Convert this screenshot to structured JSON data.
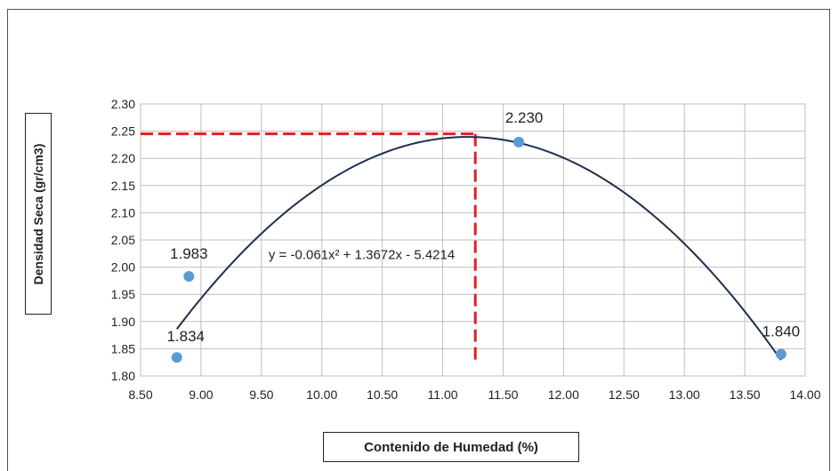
{
  "chart_data": {
    "type": "scatter",
    "title": "",
    "xlabel": "Contenido de Humedad (%)",
    "ylabel": "Densidad Seca (gr/cm3)",
    "xlim": [
      8.5,
      14.0
    ],
    "ylim": [
      1.8,
      2.3
    ],
    "x_ticks": [
      "8.50",
      "9.00",
      "9.50",
      "10.00",
      "10.50",
      "11.00",
      "11.50",
      "12.00",
      "12.50",
      "13.00",
      "13.50",
      "14.00"
    ],
    "y_ticks": [
      "1.80",
      "1.85",
      "1.90",
      "1.95",
      "2.00",
      "2.05",
      "2.10",
      "2.15",
      "2.20",
      "2.25",
      "2.30"
    ],
    "grid": true,
    "points": [
      {
        "x": 8.8,
        "y": 1.834,
        "label": "1.834"
      },
      {
        "x": 8.9,
        "y": 1.983,
        "label": "1.983"
      },
      {
        "x": 11.63,
        "y": 2.23,
        "label": "2.230"
      },
      {
        "x": 13.8,
        "y": 1.84,
        "label": "1.840"
      }
    ],
    "trendline": {
      "type": "polynomial",
      "a": -0.061,
      "b": 1.3672,
      "c": -5.4214,
      "x_range": [
        8.8,
        13.8
      ],
      "equation": "y = -0.061x² + 1.3672x - 5.4214"
    },
    "optimum": {
      "x": 11.27,
      "y": 2.245
    },
    "colors": {
      "point": "#5b9bd5",
      "curve": "#1f2f4f",
      "guide": "#e02020",
      "grid": "#bfbfbf"
    }
  }
}
